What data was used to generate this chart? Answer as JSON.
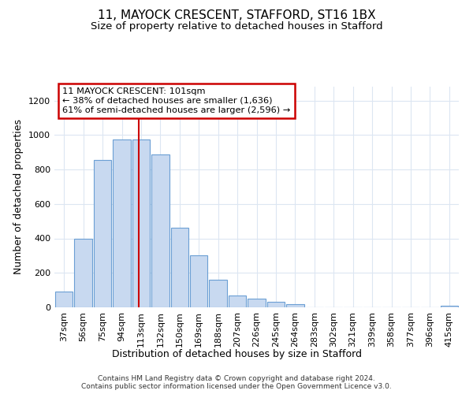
{
  "title_line1": "11, MAYOCK CRESCENT, STAFFORD, ST16 1BX",
  "title_line2": "Size of property relative to detached houses in Stafford",
  "xlabel": "Distribution of detached houses by size in Stafford",
  "ylabel": "Number of detached properties",
  "categories": [
    "37sqm",
    "56sqm",
    "75sqm",
    "94sqm",
    "113sqm",
    "132sqm",
    "150sqm",
    "169sqm",
    "188sqm",
    "207sqm",
    "226sqm",
    "245sqm",
    "264sqm",
    "283sqm",
    "302sqm",
    "321sqm",
    "339sqm",
    "358sqm",
    "377sqm",
    "396sqm",
    "415sqm"
  ],
  "values": [
    90,
    400,
    855,
    975,
    975,
    885,
    460,
    300,
    160,
    70,
    52,
    33,
    18,
    0,
    0,
    0,
    0,
    0,
    0,
    0,
    8
  ],
  "bar_color": "#c8d9f0",
  "bar_edge_color": "#6b9fd4",
  "vline_x": 3.88,
  "vline_color": "#cc0000",
  "annotation_text": "11 MAYOCK CRESCENT: 101sqm\n← 38% of detached houses are smaller (1,636)\n61% of semi-detached houses are larger (2,596) →",
  "annotation_box_color": "#ffffff",
  "annotation_box_edge": "#cc0000",
  "ylim": [
    0,
    1280
  ],
  "yticks": [
    0,
    200,
    400,
    600,
    800,
    1000,
    1200
  ],
  "footer_text": "Contains HM Land Registry data © Crown copyright and database right 2024.\nContains public sector information licensed under the Open Government Licence v3.0.",
  "background_color": "#ffffff",
  "plot_bg_color": "#ffffff",
  "grid_color": "#dce6f2",
  "title_fontsize": 11,
  "subtitle_fontsize": 9.5,
  "tick_fontsize": 8,
  "label_fontsize": 9,
  "footer_fontsize": 6.5
}
